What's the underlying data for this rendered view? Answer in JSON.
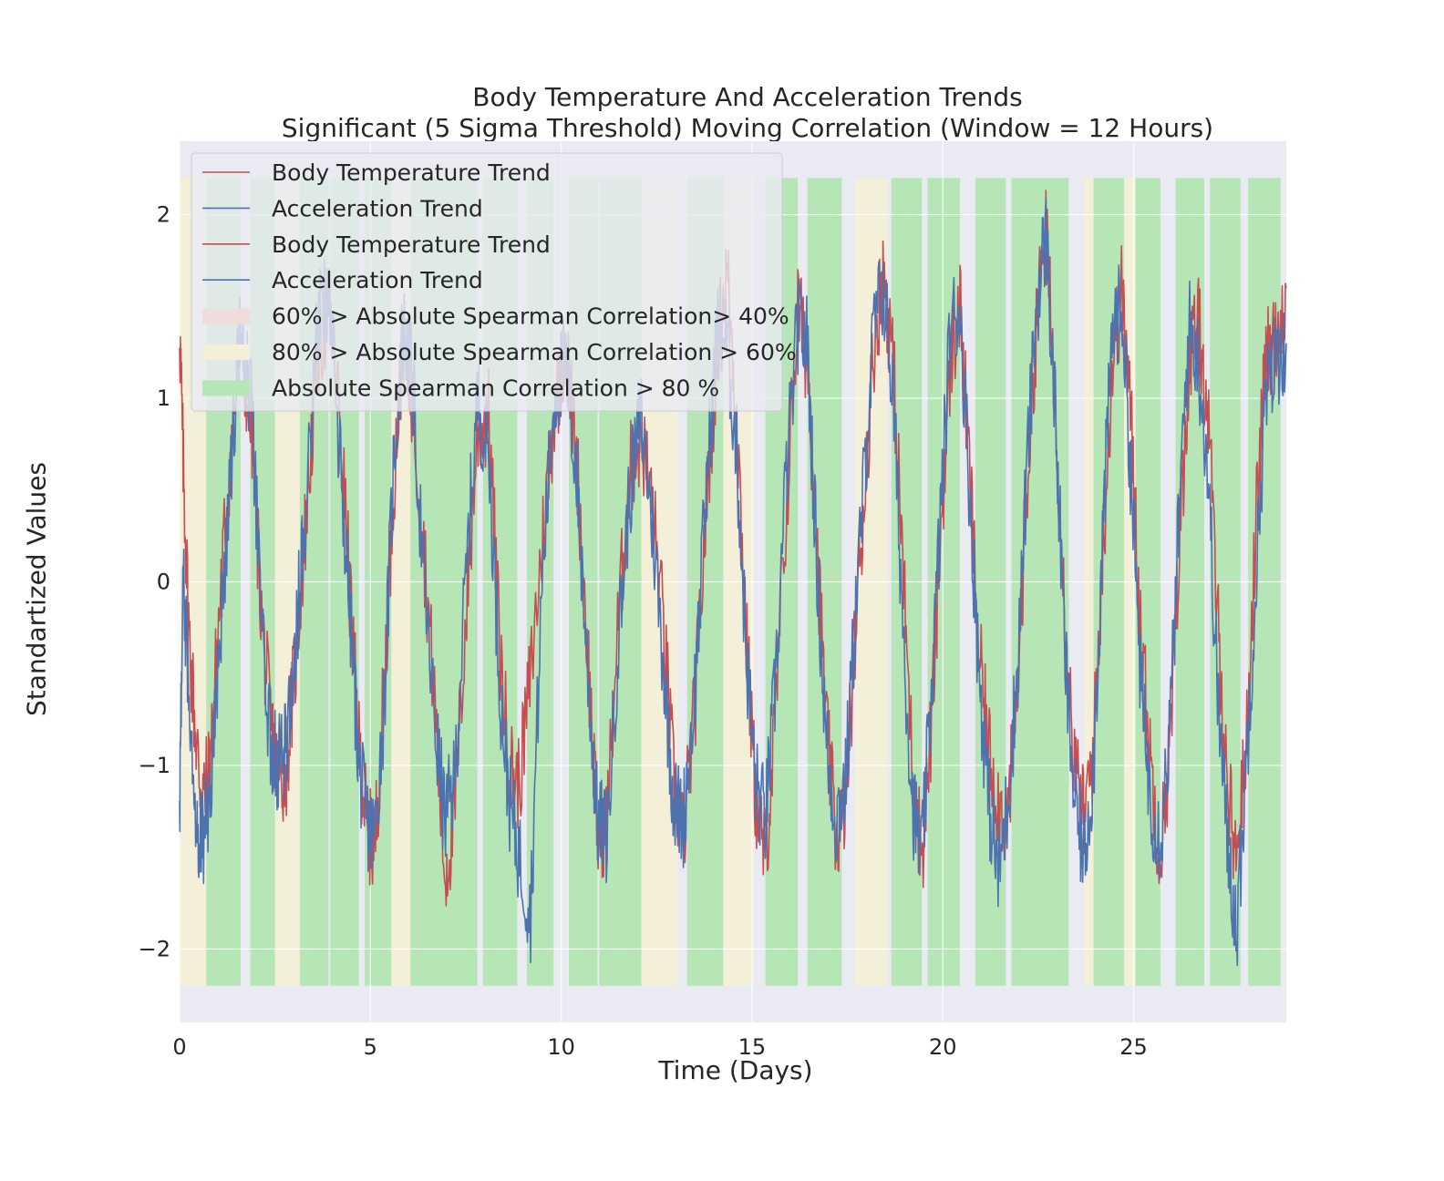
{
  "chart_data": {
    "type": "line",
    "title": "Body Temperature And Acceleration Trends",
    "subtitle": "Significant (5 Sigma Threshold) Moving Correlation (Window = 12 Hours)",
    "xlabel": "Time (Days)",
    "ylabel": "Standartized Values",
    "xlim": [
      0,
      29
    ],
    "ylim": [
      -2.4,
      2.4
    ],
    "x_ticks": [
      0,
      5,
      10,
      15,
      20,
      25
    ],
    "y_ticks": [
      -2,
      -1,
      0,
      1,
      2
    ],
    "x_tick_labels": [
      "0",
      "5",
      "10",
      "15",
      "20",
      "25"
    ],
    "y_tick_labels": [
      "−2",
      "−1",
      "0",
      "1",
      "2"
    ],
    "grid": true,
    "legend_position": "top-left",
    "legend": [
      {
        "label": "Body Temperature Trend",
        "kind": "line",
        "color": "#c44e52"
      },
      {
        "label": "Acceleration Trend",
        "kind": "line",
        "color": "#4c72b0"
      },
      {
        "label": "Body Temperature Trend",
        "kind": "line",
        "color": "#c44e52"
      },
      {
        "label": "Acceleration Trend",
        "kind": "line",
        "color": "#4c72b0"
      },
      {
        "label": "60% > Absolute Spearman Correlation> 40%",
        "kind": "patch",
        "color": "#f1dcdc"
      },
      {
        "label": "80% > Absolute Spearman Correlation > 60%",
        "kind": "patch",
        "color": "#f3efd8"
      },
      {
        "label": "Absolute Spearman Correlation > 80 %",
        "kind": "patch",
        "color": "#b6e6b6"
      }
    ],
    "band_colors": {
      "low": "#f1dcdc",
      "mid": "#f3efd8",
      "high": "#b6e6b6"
    },
    "band_range_y": [
      -2.2,
      2.2
    ],
    "bands": [
      {
        "x0": 0.0,
        "x1": 0.7,
        "level": "mid"
      },
      {
        "x0": 0.7,
        "x1": 1.6,
        "level": "high"
      },
      {
        "x0": 1.85,
        "x1": 2.5,
        "level": "high"
      },
      {
        "x0": 2.5,
        "x1": 3.15,
        "level": "mid"
      },
      {
        "x0": 3.15,
        "x1": 3.9,
        "level": "high"
      },
      {
        "x0": 3.95,
        "x1": 4.7,
        "level": "high"
      },
      {
        "x0": 4.85,
        "x1": 5.55,
        "level": "high"
      },
      {
        "x0": 5.55,
        "x1": 6.05,
        "level": "mid"
      },
      {
        "x0": 6.05,
        "x1": 7.8,
        "level": "high"
      },
      {
        "x0": 7.95,
        "x1": 8.85,
        "level": "high"
      },
      {
        "x0": 9.1,
        "x1": 9.8,
        "level": "high"
      },
      {
        "x0": 10.2,
        "x1": 10.95,
        "level": "high"
      },
      {
        "x0": 11.0,
        "x1": 12.1,
        "level": "high"
      },
      {
        "x0": 12.1,
        "x1": 13.05,
        "level": "mid"
      },
      {
        "x0": 13.3,
        "x1": 14.25,
        "level": "high"
      },
      {
        "x0": 14.25,
        "x1": 15.05,
        "level": "mid"
      },
      {
        "x0": 15.35,
        "x1": 16.2,
        "level": "high"
      },
      {
        "x0": 16.45,
        "x1": 17.35,
        "level": "high"
      },
      {
        "x0": 17.7,
        "x1": 18.55,
        "level": "mid"
      },
      {
        "x0": 18.65,
        "x1": 19.45,
        "level": "high"
      },
      {
        "x0": 19.6,
        "x1": 20.45,
        "level": "high"
      },
      {
        "x0": 20.85,
        "x1": 21.65,
        "level": "high"
      },
      {
        "x0": 21.8,
        "x1": 23.3,
        "level": "high"
      },
      {
        "x0": 23.7,
        "x1": 23.95,
        "level": "mid"
      },
      {
        "x0": 23.95,
        "x1": 24.75,
        "level": "high"
      },
      {
        "x0": 24.75,
        "x1": 25.05,
        "level": "mid"
      },
      {
        "x0": 25.05,
        "x1": 25.7,
        "level": "high"
      },
      {
        "x0": 26.1,
        "x1": 26.85,
        "level": "high"
      },
      {
        "x0": 27.0,
        "x1": 27.8,
        "level": "high"
      },
      {
        "x0": 28.0,
        "x1": 28.85,
        "level": "high"
      }
    ],
    "series": [
      {
        "name": "Body Temperature Trend",
        "color": "#c44e52",
        "x": [
          0,
          0.1,
          0.25,
          0.45,
          0.6,
          0.8,
          1.0,
          1.3,
          1.6,
          1.9,
          2.15,
          2.4,
          2.6,
          2.8,
          3.05,
          3.3,
          3.6,
          3.9,
          4.2,
          4.5,
          4.7,
          4.9,
          5.1,
          5.35,
          5.6,
          5.85,
          6.1,
          6.4,
          6.7,
          6.95,
          7.2,
          7.5,
          7.8,
          8.1,
          8.4,
          8.65,
          8.9,
          9.2,
          9.5,
          9.8,
          10.1,
          10.4,
          10.7,
          10.95,
          11.2,
          11.5,
          11.8,
          12.1,
          12.4,
          12.7,
          12.95,
          13.2,
          13.5,
          13.8,
          14.1,
          14.35,
          14.6,
          14.85,
          15.1,
          15.35,
          15.6,
          15.9,
          16.2,
          16.45,
          16.7,
          16.95,
          17.2,
          17.45,
          17.7,
          17.95,
          18.2,
          18.45,
          18.7,
          18.95,
          19.2,
          19.45,
          19.7,
          19.95,
          20.2,
          20.45,
          20.7,
          20.95,
          21.2,
          21.45,
          21.7,
          21.95,
          22.2,
          22.45,
          22.7,
          22.95,
          23.2,
          23.45,
          23.7,
          23.95,
          24.2,
          24.45,
          24.7,
          24.95,
          25.2,
          25.45,
          25.7,
          25.95,
          26.2,
          26.45,
          26.7,
          26.95,
          27.2,
          27.45,
          27.7,
          27.95,
          28.2,
          28.45,
          28.7,
          29.0
        ],
        "y": [
          1.4,
          0.6,
          -0.3,
          -0.9,
          -1.2,
          -1.0,
          -0.3,
          0.6,
          1.3,
          0.8,
          -0.2,
          -0.8,
          -1.1,
          -1.0,
          -0.4,
          0.3,
          1.2,
          1.5,
          0.9,
          -0.2,
          -0.9,
          -1.3,
          -1.5,
          -0.6,
          0.5,
          1.3,
          1.0,
          0.2,
          -0.7,
          -1.6,
          -1.3,
          -0.2,
          0.8,
          0.9,
          -0.4,
          -1.0,
          -1.1,
          -0.5,
          0.2,
          0.9,
          1.3,
          0.7,
          -0.4,
          -1.4,
          -1.3,
          -0.2,
          0.6,
          0.8,
          0.4,
          -0.3,
          -1.1,
          -1.4,
          -0.7,
          0.4,
          1.3,
          1.7,
          0.9,
          -0.3,
          -1.2,
          -1.5,
          -0.8,
          0.4,
          1.5,
          1.2,
          0.2,
          -0.8,
          -1.4,
          -1.2,
          -0.3,
          0.5,
          1.3,
          1.7,
          1.2,
          0.1,
          -1.0,
          -1.5,
          -0.8,
          0.3,
          1.2,
          1.5,
          0.6,
          -0.4,
          -0.9,
          -1.2,
          -1.3,
          -0.6,
          0.5,
          1.4,
          1.9,
          1.0,
          -0.2,
          -1.0,
          -1.3,
          -0.9,
          0.2,
          1.2,
          1.6,
          0.8,
          -0.3,
          -1.0,
          -1.5,
          -0.9,
          0.2,
          1.2,
          1.4,
          0.9,
          -0.2,
          -1.1,
          -1.5,
          -0.9,
          0.3,
          1.2,
          1.3,
          1.6
        ]
      },
      {
        "name": "Acceleration Trend",
        "color": "#4c72b0",
        "x": [
          0,
          0.1,
          0.25,
          0.45,
          0.6,
          0.8,
          1.0,
          1.3,
          1.6,
          1.9,
          2.15,
          2.4,
          2.6,
          2.8,
          3.05,
          3.3,
          3.6,
          3.9,
          4.2,
          4.5,
          4.7,
          4.9,
          5.1,
          5.35,
          5.6,
          5.85,
          6.1,
          6.4,
          6.7,
          6.95,
          7.2,
          7.5,
          7.8,
          8.1,
          8.4,
          8.65,
          8.9,
          9.2,
          9.5,
          9.8,
          10.1,
          10.4,
          10.7,
          10.95,
          11.2,
          11.5,
          11.8,
          12.1,
          12.4,
          12.7,
          12.95,
          13.2,
          13.5,
          13.8,
          14.1,
          14.35,
          14.6,
          14.85,
          15.1,
          15.35,
          15.6,
          15.9,
          16.2,
          16.45,
          16.7,
          16.95,
          17.2,
          17.45,
          17.7,
          17.95,
          18.2,
          18.45,
          18.7,
          18.95,
          19.2,
          19.45,
          19.7,
          19.95,
          20.2,
          20.45,
          20.7,
          20.95,
          21.2,
          21.45,
          21.7,
          21.95,
          22.2,
          22.45,
          22.7,
          22.95,
          23.2,
          23.45,
          23.7,
          23.95,
          24.2,
          24.45,
          24.7,
          24.95,
          25.2,
          25.45,
          25.7,
          25.95,
          26.2,
          26.45,
          26.7,
          26.95,
          27.2,
          27.45,
          27.7,
          27.95,
          28.2,
          28.45,
          28.7,
          29.0
        ],
        "y": [
          -1.2,
          0.0,
          -0.6,
          -1.3,
          -1.4,
          -1.2,
          -0.5,
          0.5,
          1.4,
          0.9,
          -0.3,
          -0.9,
          -1.0,
          -0.9,
          -0.3,
          0.4,
          1.4,
          1.6,
          0.7,
          -0.3,
          -1.0,
          -1.3,
          -1.4,
          -0.7,
          0.6,
          1.4,
          1.1,
          0.0,
          -0.8,
          -1.3,
          -1.1,
          0.0,
          1.0,
          0.7,
          -0.6,
          -1.2,
          -1.5,
          -1.8,
          0.0,
          1.0,
          1.2,
          0.6,
          -0.5,
          -1.3,
          -1.4,
          -0.3,
          0.5,
          0.9,
          0.3,
          -0.5,
          -1.2,
          -1.3,
          -0.6,
          0.5,
          1.4,
          1.3,
          0.7,
          -0.4,
          -1.1,
          -1.3,
          -0.6,
          0.6,
          1.4,
          1.3,
          0.1,
          -0.9,
          -1.3,
          -1.1,
          -0.2,
          0.6,
          1.4,
          1.6,
          1.0,
          -0.2,
          -1.2,
          -1.5,
          -0.6,
          0.4,
          1.4,
          1.5,
          0.5,
          -0.5,
          -1.2,
          -1.6,
          -1.2,
          -0.5,
          0.6,
          1.5,
          1.9,
          0.9,
          -0.4,
          -1.2,
          -1.5,
          -1.0,
          0.3,
          1.4,
          1.5,
          0.5,
          -0.6,
          -1.2,
          -1.4,
          -0.8,
          0.4,
          1.4,
          1.2,
          0.6,
          -0.6,
          -1.4,
          -1.9,
          -1.0,
          0.0,
          1.0,
          1.2,
          1.3
        ]
      }
    ]
  }
}
